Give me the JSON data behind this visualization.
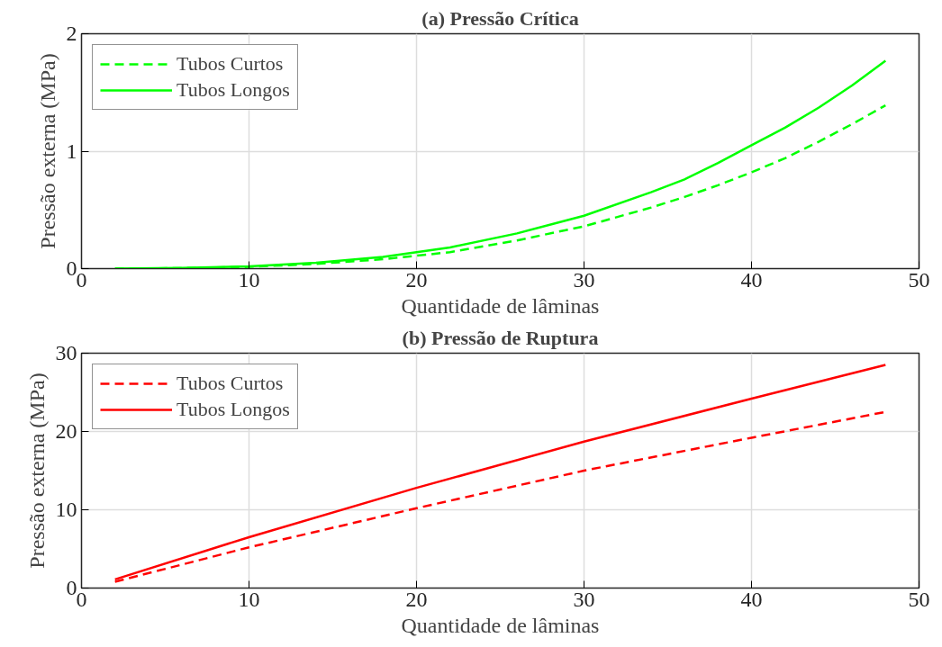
{
  "chart_data": [
    {
      "type": "line",
      "title": "(a) Pressão Crítica",
      "xlabel": "Quantidade de lâminas",
      "ylabel": "Pressão externa (MPa)",
      "xlim": [
        0,
        50
      ],
      "xticks": [
        0,
        10,
        20,
        30,
        40,
        50
      ],
      "ylim": [
        0,
        2
      ],
      "yticks": [
        0,
        1,
        2
      ],
      "grid": true,
      "legend": "top left",
      "x": [
        2,
        6,
        10,
        14,
        18,
        22,
        26,
        30,
        34,
        36,
        38,
        40,
        42,
        44,
        46,
        48
      ],
      "series": [
        {
          "name": "Tubos Curtos",
          "color": "#00ff00",
          "line_style": "dashed",
          "values": [
            0,
            0.004,
            0.015,
            0.04,
            0.08,
            0.14,
            0.24,
            0.36,
            0.52,
            0.61,
            0.71,
            0.82,
            0.94,
            1.08,
            1.23,
            1.39
          ]
        },
        {
          "name": "Tubos Longos",
          "color": "#00ff00",
          "line_style": "solid",
          "values": [
            0,
            0.005,
            0.02,
            0.05,
            0.1,
            0.18,
            0.3,
            0.45,
            0.65,
            0.76,
            0.9,
            1.05,
            1.2,
            1.37,
            1.56,
            1.77
          ]
        }
      ]
    },
    {
      "type": "line",
      "title": "(b) Pressão de Ruptura",
      "xlabel": "Quantidade de lâminas",
      "ylabel": "Pressão externa (MPa)",
      "xlim": [
        0,
        50
      ],
      "xticks": [
        0,
        10,
        20,
        30,
        40,
        50
      ],
      "ylim": [
        0,
        30
      ],
      "yticks": [
        0,
        10,
        20,
        30
      ],
      "grid": true,
      "legend": "top left",
      "x": [
        2,
        10,
        20,
        30,
        40,
        48
      ],
      "series": [
        {
          "name": "Tubos Curtos",
          "color": "#ff0000",
          "line_style": "dashed",
          "values": [
            0.8,
            5.2,
            10.2,
            15,
            19.2,
            22.5
          ]
        },
        {
          "name": "Tubos Longos",
          "color": "#ff0000",
          "line_style": "solid",
          "values": [
            1.1,
            6.5,
            12.8,
            18.7,
            24.2,
            28.5
          ]
        }
      ]
    }
  ]
}
